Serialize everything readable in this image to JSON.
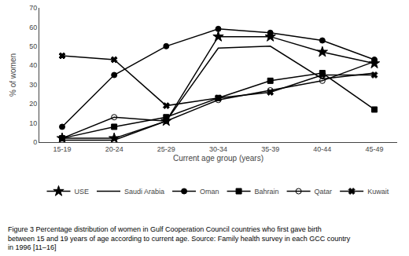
{
  "chart_data": {
    "type": "line",
    "categories": [
      "15-19",
      "20-24",
      "25-29",
      "30-34",
      "35-39",
      "40-44",
      "45-49"
    ],
    "series": [
      {
        "name": "USE",
        "color": "#000000",
        "marker": "star",
        "values": [
          2,
          2,
          11,
          55,
          55,
          47,
          41
        ]
      },
      {
        "name": "Saudi Arabia",
        "color": "#000000",
        "marker": "none",
        "values": [
          1,
          1,
          11,
          49,
          50,
          33,
          36
        ]
      },
      {
        "name": "Oman",
        "color": "#000000",
        "marker": "triangle-open",
        "values": [
          8,
          35,
          50,
          59,
          57,
          53,
          43
        ]
      },
      {
        "name": "Bahrain",
        "color": "#000000",
        "marker": "square",
        "values": [
          2,
          8,
          13,
          23,
          32,
          36,
          17
        ]
      },
      {
        "name": "Qatar",
        "color": "#000000",
        "marker": "circle-open",
        "values": [
          2,
          13,
          11,
          22,
          27,
          32,
          42
        ]
      },
      {
        "name": "Kuwait",
        "color": "#000000",
        "marker": "x",
        "values": [
          45,
          43,
          19,
          23,
          26,
          35,
          35
        ]
      }
    ],
    "x_label": "Current age group (years)",
    "y_label": "% of women",
    "ylim": [
      0,
      70
    ],
    "yticks": [
      0,
      10,
      20,
      30,
      40,
      50,
      60,
      70
    ],
    "grid": false,
    "legend": "bottom",
    "annotations": [
      "Figure 3 Percentage distribution of women in Gulf Cooperation Council countries who first gave birth\nbetween 15 and 19 years of age according to current age. Source: Family health survey in each GCC country\nin 1996 [11–16]"
    ]
  }
}
